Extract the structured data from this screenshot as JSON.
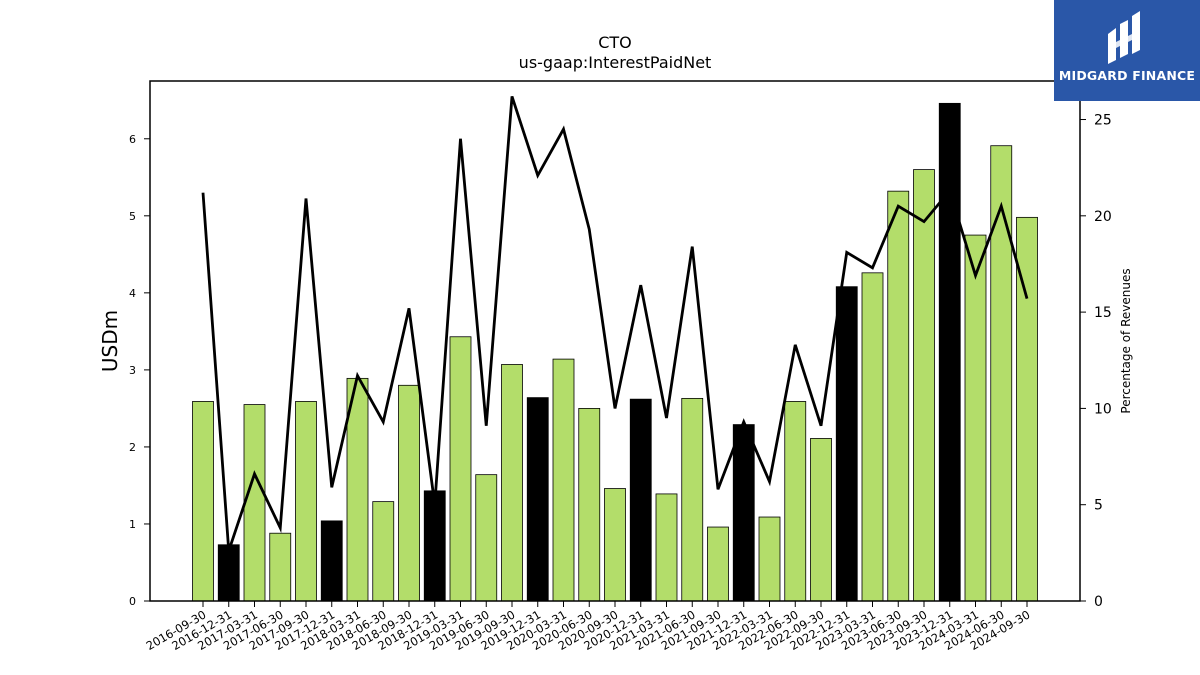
{
  "brand": {
    "name": "MIDGARD FINANCE",
    "bg_color": "#2a57a8"
  },
  "chart_data": {
    "type": "bar",
    "title": "CTO",
    "subtitle": "us-gaap:InterestPaidNet",
    "ylabel": "USDm",
    "y2label": "Percentage of Revenues",
    "ylim": [
      0,
      6.75
    ],
    "y2lim": [
      0,
      27.0
    ],
    "yticks": [
      0,
      1,
      2,
      3,
      4,
      5,
      6
    ],
    "y2ticks": [
      0,
      5,
      10,
      15,
      20,
      25
    ],
    "bar_colors": {
      "normal": "#b3dd6a",
      "q4": "#000000"
    },
    "line_color": "#000000",
    "categories": [
      "2016-09-30",
      "2016-12-31",
      "2017-03-31",
      "2017-06-30",
      "2017-09-30",
      "2017-12-31",
      "2018-03-31",
      "2018-06-30",
      "2018-09-30",
      "2018-12-31",
      "2019-03-31",
      "2019-06-30",
      "2019-09-30",
      "2019-12-31",
      "2020-03-31",
      "2020-06-30",
      "2020-09-30",
      "2020-12-31",
      "2021-03-31",
      "2021-06-30",
      "2021-09-30",
      "2021-12-31",
      "2022-03-31",
      "2022-06-30",
      "2022-09-30",
      "2022-12-31",
      "2023-03-31",
      "2023-06-30",
      "2023-09-30",
      "2023-12-31",
      "2024-03-31",
      "2024-06-30",
      "2024-09-30"
    ],
    "series": [
      {
        "type": "bar",
        "values": [
          2.59,
          0.73,
          2.55,
          0.88,
          2.59,
          1.04,
          2.89,
          1.29,
          2.8,
          1.43,
          3.43,
          1.64,
          3.07,
          2.64,
          3.14,
          2.5,
          1.46,
          2.62,
          1.39,
          2.63,
          0.96,
          2.29,
          1.09,
          2.59,
          2.11,
          4.08,
          4.26,
          5.32,
          5.6,
          6.46,
          4.75,
          5.91,
          4.98
        ]
      },
      {
        "type": "line",
        "axis": "right",
        "values": [
          21.2,
          2.6,
          6.6,
          3.8,
          20.9,
          5.9,
          11.7,
          9.3,
          15.2,
          5.0,
          24.0,
          9.1,
          26.2,
          22.1,
          24.5,
          19.3,
          10.0,
          16.4,
          9.5,
          18.4,
          5.8,
          9.3,
          6.2,
          13.3,
          9.1,
          18.1,
          17.3,
          20.5,
          19.7,
          21.3,
          16.9,
          20.5,
          15.7
        ]
      }
    ]
  }
}
